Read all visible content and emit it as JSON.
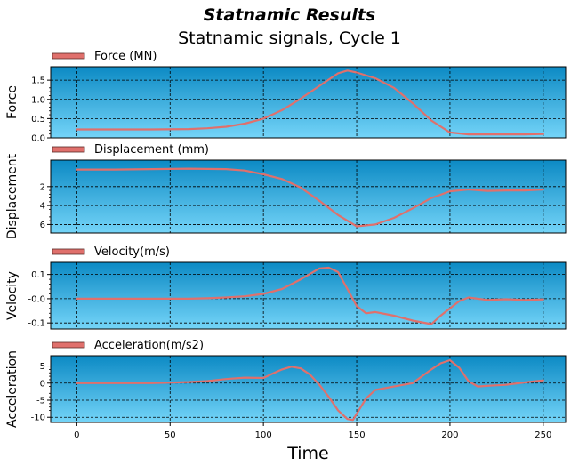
{
  "title": "Statnamic Results",
  "subtitle": "Statnamic signals, Cycle 1",
  "xlabel": "Time",
  "colors": {
    "bg_top": "#0c8ac4",
    "bg_bottom": "#74d4f8",
    "line": "#e0706c",
    "grid": "#000000"
  },
  "chart_data": [
    {
      "type": "line",
      "legend": "Force (MN)",
      "ylabel": "Force",
      "xlim": [
        -14,
        262
      ],
      "ylim": [
        0,
        1.85
      ],
      "invert_y": false,
      "yticks": [
        0.0,
        0.5,
        1.0,
        1.5
      ],
      "ytick_labels": [
        "0.0",
        "0.5",
        "1.0",
        "1.5"
      ],
      "xticks": [
        0,
        50,
        100,
        150,
        200,
        250
      ],
      "x": [
        0,
        20,
        40,
        60,
        70,
        80,
        90,
        100,
        110,
        120,
        130,
        140,
        145,
        150,
        160,
        170,
        180,
        190,
        200,
        210,
        220,
        230,
        240,
        250
      ],
      "y": [
        0.22,
        0.22,
        0.22,
        0.23,
        0.25,
        0.29,
        0.37,
        0.5,
        0.72,
        1.02,
        1.35,
        1.68,
        1.75,
        1.7,
        1.55,
        1.3,
        0.9,
        0.45,
        0.14,
        0.09,
        0.09,
        0.09,
        0.09,
        0.1
      ]
    },
    {
      "type": "line",
      "legend": "Displacement (mm)",
      "ylabel": "Displacement",
      "xlim": [
        -14,
        262
      ],
      "ylim": [
        -0.8,
        6.9
      ],
      "invert_y": true,
      "yticks": [
        2,
        4,
        6
      ],
      "ytick_labels": [
        "2",
        "4",
        "6"
      ],
      "xticks": [
        0,
        50,
        100,
        150,
        200,
        250
      ],
      "x": [
        0,
        20,
        40,
        60,
        80,
        90,
        100,
        110,
        120,
        130,
        140,
        150,
        160,
        170,
        180,
        190,
        200,
        210,
        220,
        230,
        240,
        250
      ],
      "y": [
        0.2,
        0.2,
        0.15,
        0.1,
        0.15,
        0.3,
        0.7,
        1.2,
        2.1,
        3.5,
        5.0,
        6.2,
        6.0,
        5.3,
        4.3,
        3.2,
        2.5,
        2.3,
        2.45,
        2.4,
        2.4,
        2.3
      ]
    },
    {
      "type": "line",
      "legend": "Velocity(m/s)",
      "ylabel": "Velocity",
      "xlim": [
        -14,
        262
      ],
      "ylim": [
        -0.125,
        0.15
      ],
      "invert_y": false,
      "yticks": [
        0.1,
        0.0,
        -0.1
      ],
      "ytick_labels": [
        "0.1",
        "-0.0",
        "-0.1"
      ],
      "xticks": [
        0,
        50,
        100,
        150,
        200,
        250
      ],
      "x": [
        0,
        20,
        40,
        60,
        70,
        80,
        90,
        100,
        110,
        120,
        130,
        135,
        140,
        145,
        150,
        155,
        160,
        170,
        180,
        190,
        195,
        200,
        205,
        210,
        220,
        230,
        240,
        250
      ],
      "y": [
        0.0,
        0.0,
        0.0,
        0.0,
        0.002,
        0.005,
        0.01,
        0.02,
        0.04,
        0.08,
        0.125,
        0.128,
        0.11,
        0.04,
        -0.03,
        -0.06,
        -0.055,
        -0.07,
        -0.09,
        -0.105,
        -0.07,
        -0.04,
        -0.01,
        0.005,
        -0.005,
        -0.002,
        -0.005,
        -0.003
      ]
    },
    {
      "type": "line",
      "legend": "Acceleration(m/s2)",
      "ylabel": "Acceleration",
      "xlim": [
        -14,
        262
      ],
      "ylim": [
        -11.5,
        8
      ],
      "invert_y": false,
      "yticks": [
        5,
        0,
        -5,
        -10
      ],
      "ytick_labels": [
        "5",
        "0",
        "-5",
        "-10"
      ],
      "xticks": [
        0,
        50,
        100,
        150,
        200,
        250
      ],
      "x": [
        0,
        20,
        40,
        60,
        70,
        80,
        90,
        100,
        105,
        110,
        115,
        120,
        125,
        130,
        135,
        140,
        145,
        148,
        150,
        155,
        160,
        170,
        180,
        190,
        195,
        200,
        205,
        210,
        215,
        220,
        230,
        240,
        250
      ],
      "y": [
        0,
        0,
        0,
        0.3,
        0.6,
        1.2,
        1.6,
        1.5,
        2.8,
        4.0,
        4.8,
        4.3,
        2.5,
        -0.5,
        -4.0,
        -8.0,
        -10.5,
        -10.8,
        -9.0,
        -4.5,
        -2.0,
        -1.0,
        0.0,
        4.0,
        5.8,
        6.7,
        4.5,
        0.5,
        -1.0,
        -0.8,
        -0.5,
        0.2,
        0.8
      ]
    }
  ],
  "x_tick_labels": [
    "0",
    "50",
    "100",
    "150",
    "200",
    "250"
  ]
}
